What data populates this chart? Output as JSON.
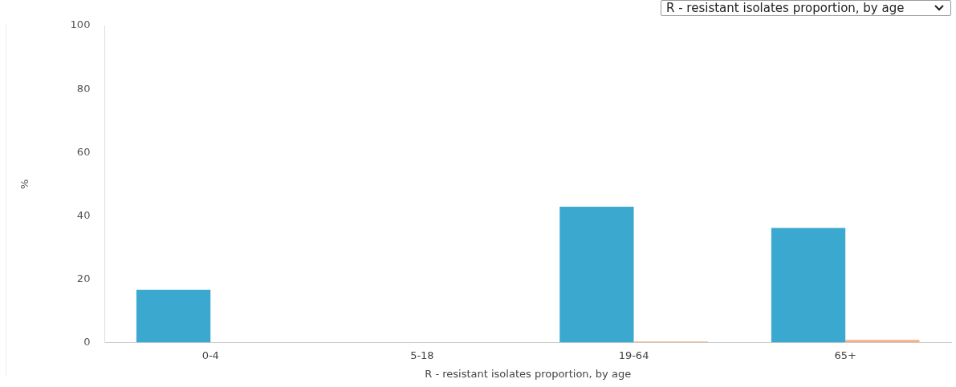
{
  "chart_data": {
    "type": "bar",
    "xlabel": "R - resistant isolates proportion, by age",
    "ylabel": "%",
    "annotations": [
      "R - resistant isolates proportion, by age"
    ],
    "categories": [
      "0-4",
      "5-18",
      "19-64",
      "65+"
    ],
    "series": [
      {
        "color": "#3ba8cf",
        "values": [
          16.7,
          0,
          42.9,
          36.2
        ]
      },
      {
        "color": "#f4b183",
        "values": [
          0,
          0,
          0.4,
          0.9
        ]
      }
    ],
    "ylim": [
      0,
      100
    ],
    "yticks": [
      0,
      20,
      40,
      60,
      80,
      100
    ],
    "grid": false,
    "legend": false
  }
}
